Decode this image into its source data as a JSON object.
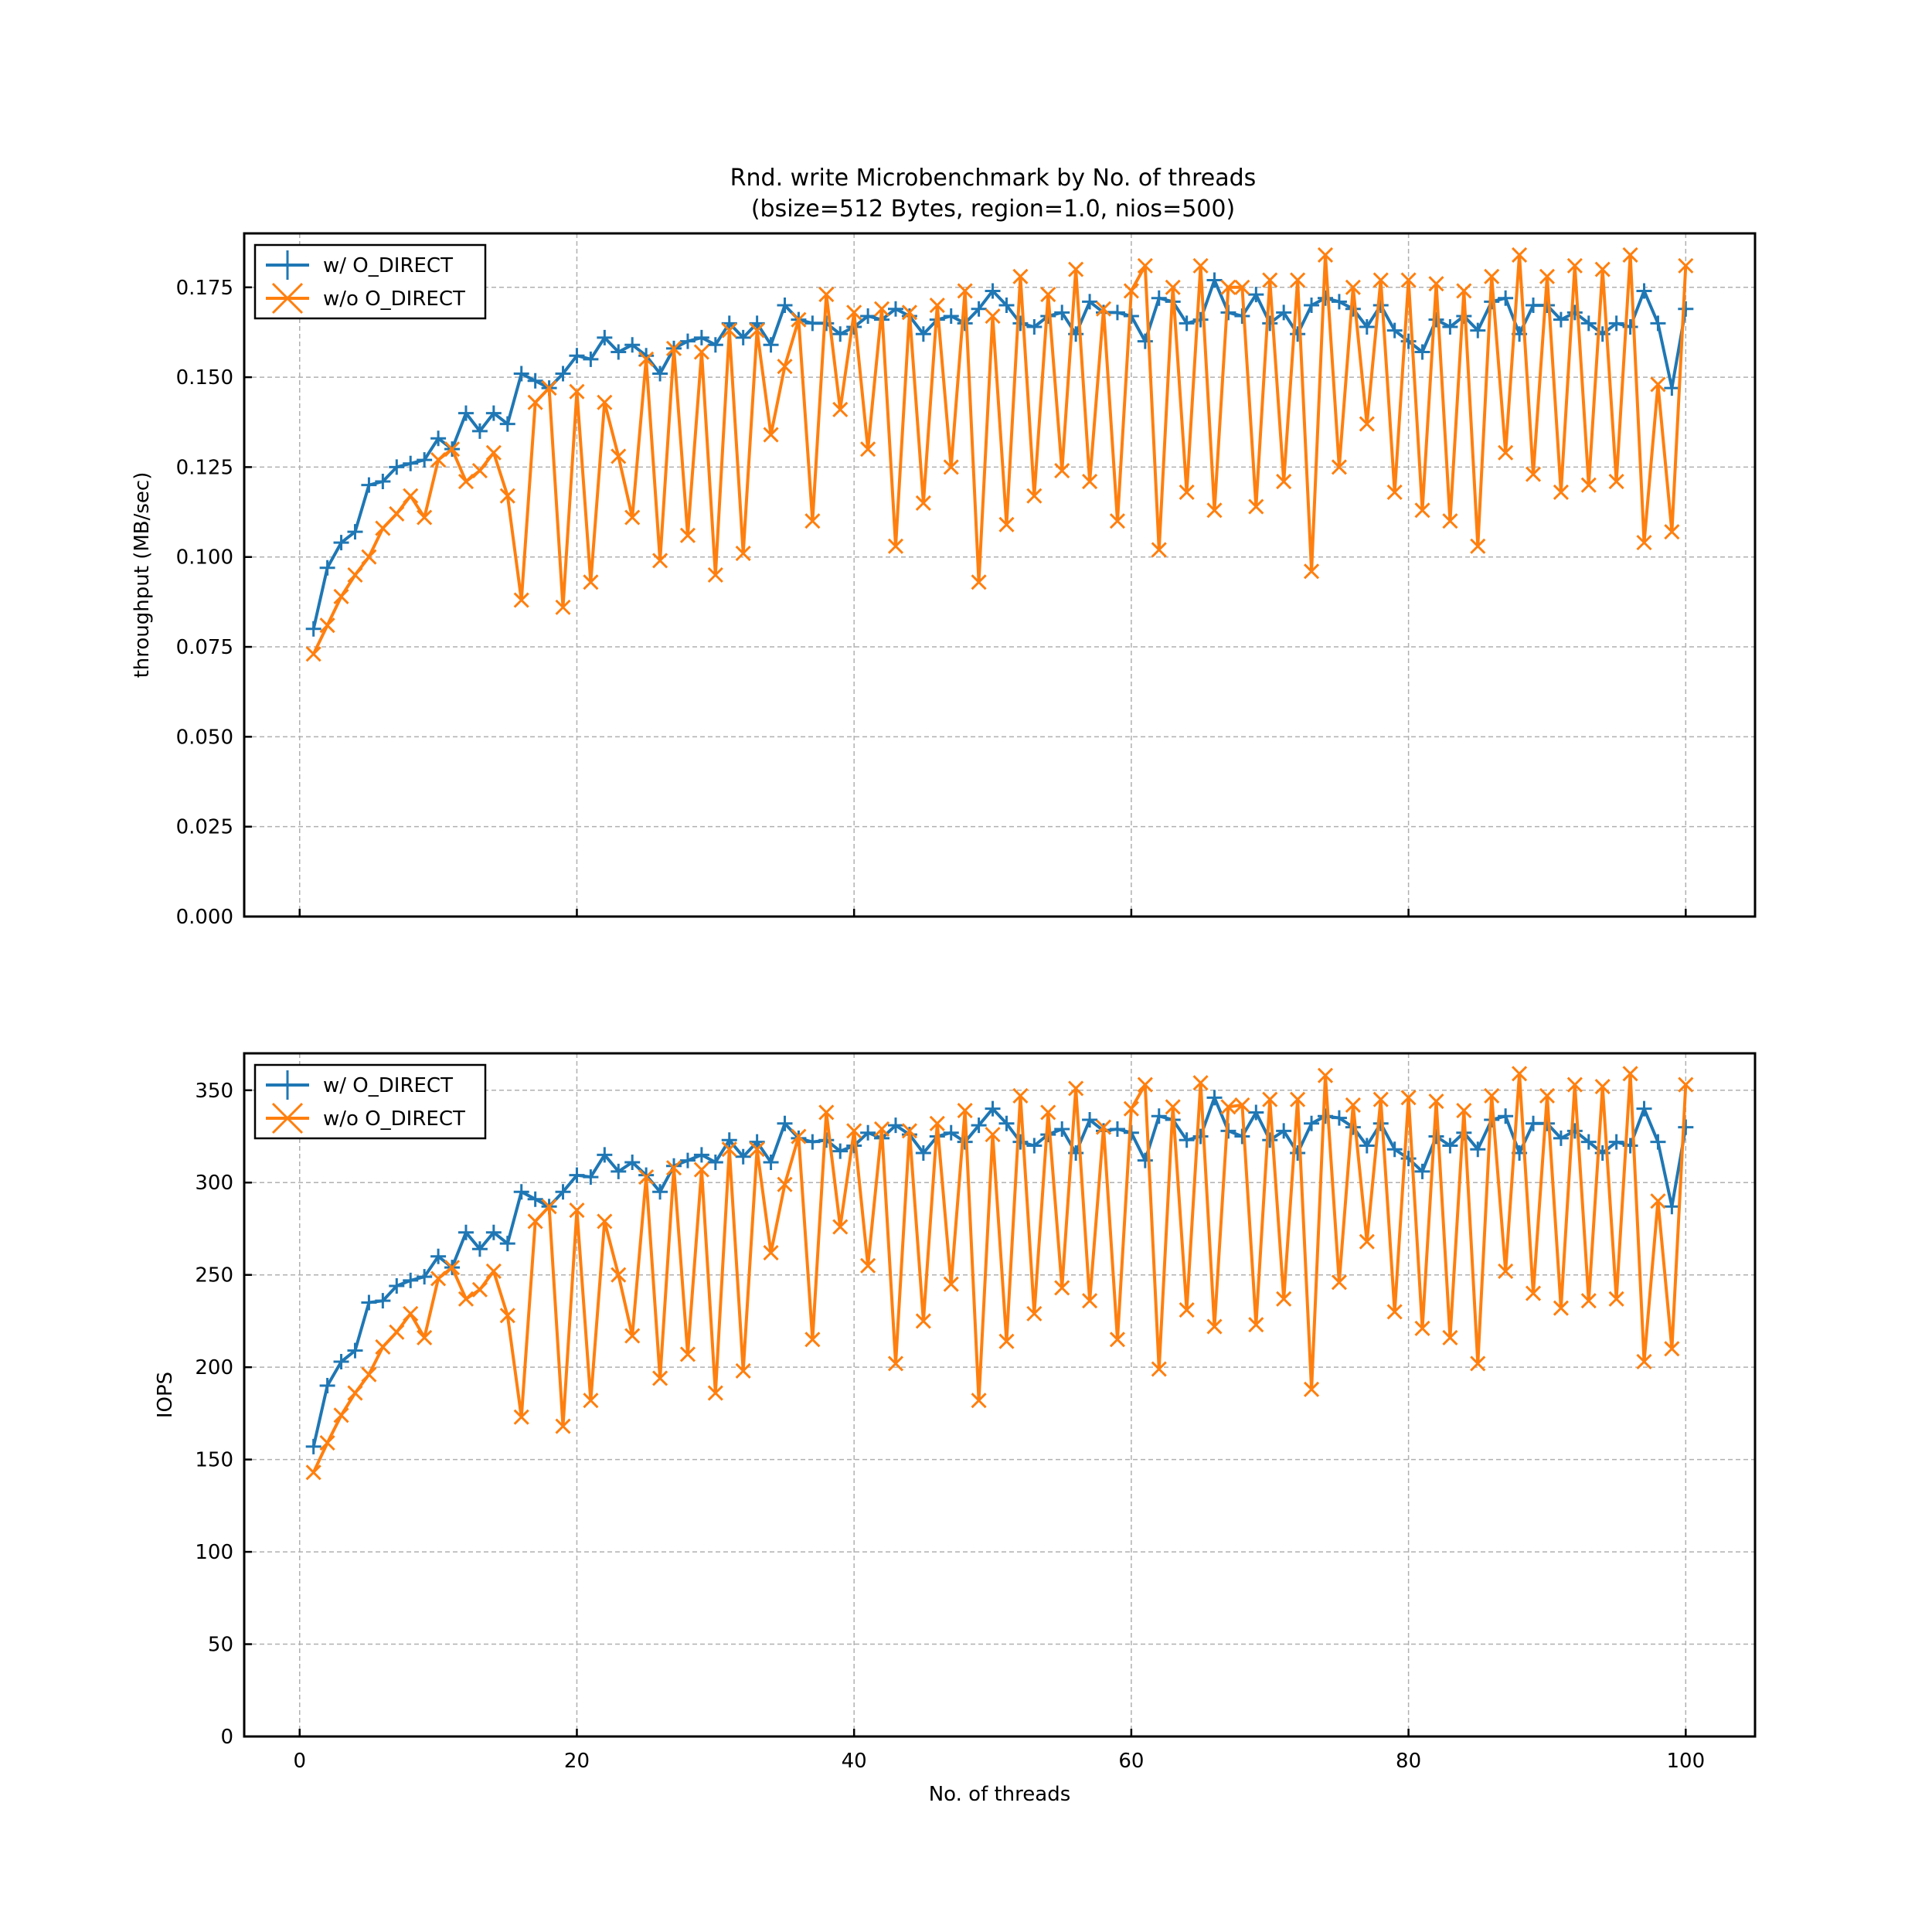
{
  "chart_data": [
    {
      "type": "line",
      "title": "Rnd. write Microbenchmark by No. of threads",
      "subtitle": "(bsize=512 Bytes, region=1.0, nios=500)",
      "xlabel": "",
      "ylabel": "throughput (MB/sec)",
      "xlim": [
        -4,
        105
      ],
      "ylim": [
        0,
        0.19
      ],
      "xticks": [
        0,
        20,
        40,
        60,
        80,
        100
      ],
      "yticks": [
        0.0,
        0.025,
        0.05,
        0.075,
        0.1,
        0.125,
        0.15,
        0.175
      ],
      "ytick_labels": [
        "0.000",
        "0.025",
        "0.050",
        "0.075",
        "0.100",
        "0.125",
        "0.150",
        "0.175"
      ],
      "show_xtick_labels": false,
      "grid": true,
      "legend": "top-left",
      "series": [
        {
          "name": "w/ O_DIRECT",
          "color": "#1f77b4",
          "marker": "plus",
          "x_start": 1,
          "values": [
            0.08,
            0.097,
            0.104,
            0.107,
            0.12,
            0.121,
            0.125,
            0.126,
            0.127,
            0.133,
            0.13,
            0.14,
            0.135,
            0.14,
            0.137,
            0.151,
            0.149,
            0.147,
            0.151,
            0.156,
            0.155,
            0.161,
            0.157,
            0.159,
            0.156,
            0.151,
            0.158,
            0.16,
            0.161,
            0.159,
            0.165,
            0.161,
            0.165,
            0.159,
            0.17,
            0.166,
            0.165,
            0.165,
            0.162,
            0.164,
            0.167,
            0.166,
            0.169,
            0.167,
            0.162,
            0.166,
            0.167,
            0.165,
            0.169,
            0.174,
            0.17,
            0.165,
            0.164,
            0.167,
            0.168,
            0.162,
            0.171,
            0.168,
            0.168,
            0.167,
            0.16,
            0.172,
            0.171,
            0.165,
            0.166,
            0.177,
            0.168,
            0.167,
            0.173,
            0.165,
            0.168,
            0.162,
            0.17,
            0.172,
            0.171,
            0.169,
            0.164,
            0.17,
            0.163,
            0.16,
            0.157,
            0.166,
            0.164,
            0.167,
            0.163,
            0.171,
            0.172,
            0.162,
            0.17,
            0.17,
            0.166,
            0.168,
            0.165,
            0.162,
            0.165,
            0.164,
            0.174,
            0.165,
            0.147,
            0.169
          ]
        },
        {
          "name": "w/o O_DIRECT",
          "color": "#ff7f0e",
          "marker": "x",
          "x_start": 1,
          "values": [
            0.073,
            0.081,
            0.089,
            0.095,
            0.1,
            0.108,
            0.112,
            0.117,
            0.111,
            0.127,
            0.13,
            0.121,
            0.124,
            0.129,
            0.117,
            0.088,
            0.143,
            0.147,
            0.086,
            0.146,
            0.093,
            0.143,
            0.128,
            0.111,
            0.155,
            0.099,
            0.158,
            0.106,
            0.157,
            0.095,
            0.163,
            0.101,
            0.163,
            0.134,
            0.153,
            0.166,
            0.11,
            0.173,
            0.141,
            0.168,
            0.13,
            0.169,
            0.103,
            0.168,
            0.115,
            0.17,
            0.125,
            0.174,
            0.093,
            0.167,
            0.109,
            0.178,
            0.117,
            0.173,
            0.124,
            0.18,
            0.121,
            0.169,
            0.11,
            0.174,
            0.181,
            0.102,
            0.175,
            0.118,
            0.181,
            0.113,
            0.175,
            0.175,
            0.114,
            0.177,
            0.121,
            0.177,
            0.096,
            0.184,
            0.125,
            0.175,
            0.137,
            0.177,
            0.118,
            0.177,
            0.113,
            0.176,
            0.11,
            0.174,
            0.103,
            0.178,
            0.129,
            0.184,
            0.123,
            0.178,
            0.118,
            0.181,
            0.12,
            0.18,
            0.121,
            0.184,
            0.104,
            0.148,
            0.107,
            0.181
          ]
        }
      ]
    },
    {
      "type": "line",
      "title": "",
      "xlabel": "No. of threads",
      "ylabel": "IOPS",
      "xlim": [
        -4,
        105
      ],
      "ylim": [
        0,
        370
      ],
      "xticks": [
        0,
        20,
        40,
        60,
        80,
        100
      ],
      "xtick_labels": [
        "0",
        "20",
        "40",
        "60",
        "80",
        "100"
      ],
      "yticks": [
        0,
        50,
        100,
        150,
        200,
        250,
        300,
        350
      ],
      "ytick_labels": [
        "0",
        "50",
        "100",
        "150",
        "200",
        "250",
        "300",
        "350"
      ],
      "show_xtick_labels": true,
      "grid": true,
      "legend": "top-left",
      "series": [
        {
          "name": "w/ O_DIRECT",
          "color": "#1f77b4",
          "marker": "plus",
          "x_start": 1,
          "values": [
            157,
            190,
            203,
            209,
            235,
            236,
            244,
            247,
            249,
            260,
            254,
            273,
            264,
            273,
            267,
            295,
            291,
            287,
            295,
            304,
            303,
            315,
            306,
            311,
            304,
            295,
            309,
            312,
            315,
            311,
            323,
            314,
            322,
            311,
            332,
            324,
            322,
            323,
            317,
            320,
            327,
            324,
            331,
            326,
            316,
            325,
            327,
            322,
            331,
            340,
            332,
            322,
            320,
            326,
            329,
            316,
            334,
            328,
            329,
            327,
            312,
            336,
            334,
            323,
            325,
            346,
            328,
            325,
            338,
            323,
            328,
            316,
            332,
            336,
            335,
            330,
            320,
            332,
            318,
            313,
            306,
            325,
            320,
            327,
            318,
            334,
            336,
            316,
            332,
            332,
            324,
            328,
            322,
            316,
            322,
            320,
            340,
            322,
            287,
            330
          ]
        },
        {
          "name": "w/o O_DIRECT",
          "color": "#ff7f0e",
          "marker": "x",
          "x_start": 1,
          "values": [
            143,
            159,
            174,
            186,
            196,
            211,
            219,
            229,
            216,
            248,
            254,
            237,
            242,
            252,
            228,
            173,
            279,
            287,
            168,
            285,
            182,
            279,
            250,
            217,
            303,
            194,
            308,
            207,
            307,
            186,
            318,
            198,
            318,
            262,
            299,
            325,
            215,
            338,
            276,
            328,
            255,
            329,
            202,
            328,
            225,
            332,
            245,
            339,
            182,
            326,
            214,
            347,
            229,
            338,
            243,
            351,
            236,
            330,
            215,
            340,
            353,
            199,
            341,
            231,
            354,
            222,
            341,
            342,
            223,
            345,
            237,
            345,
            188,
            358,
            246,
            342,
            268,
            345,
            230,
            346,
            221,
            344,
            216,
            339,
            202,
            347,
            252,
            359,
            240,
            347,
            232,
            353,
            236,
            352,
            237,
            359,
            203,
            290,
            210,
            353
          ]
        }
      ]
    }
  ]
}
